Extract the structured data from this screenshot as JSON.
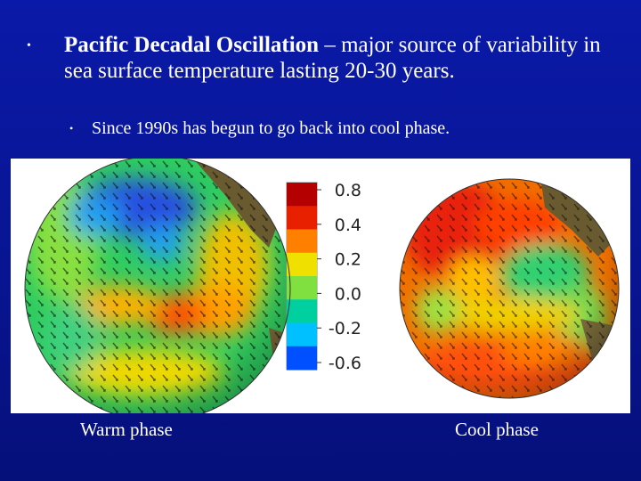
{
  "slide": {
    "bullet_main": {
      "title": "Pacific Decadal Oscillation",
      "text": " – major source of variability in sea surface temperature lasting 20-30 years."
    },
    "bullet_sub": {
      "text": "Since 1990s has begun to go back into cool phase."
    },
    "figure": {
      "colorbar_ticks": [
        "0.8",
        "0.4",
        "0.2",
        "0.0",
        "-0.2",
        "-0.6"
      ],
      "colorbar_colors": [
        "#b40000",
        "#e82000",
        "#ff8000",
        "#f0e000",
        "#80e040",
        "#00d0a0",
        "#00c0ff",
        "#0050ff"
      ],
      "captions": {
        "warm": "Warm phase",
        "cool": "Cool phase"
      }
    }
  }
}
